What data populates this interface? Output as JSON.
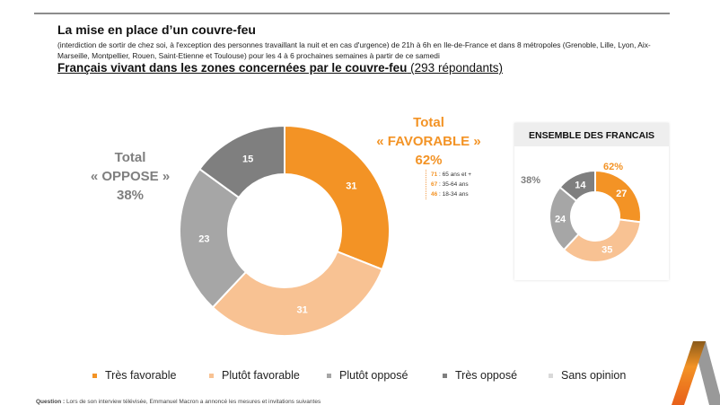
{
  "header": {
    "title": "La mise en place d’un couvre-feu",
    "description": "(interdiction de sortir de chez soi, à l'exception des personnes travaillant la nuit et en cas d'urgence) de 21h à 6h en Ile-de-France et dans 8 métropoles (Grenoble, Lille, Lyon, Aix-Marseille, Montpellier, Rouen, Saint-Etienne et Toulouse) pour les 4 à 6 prochaines semaines à partir de ce samedi",
    "subtitle_bold": "Français vivant dans les zones concernées par le couvre-feu",
    "subtitle_rest": " (293 répondants)"
  },
  "totals": {
    "oppose": {
      "l1": "Total",
      "l2": "« OPPOSE »",
      "l3": "38%"
    },
    "favorable": {
      "l1": "Total",
      "l2": "« FAVORABLE »",
      "l3": "62%"
    }
  },
  "ages": [
    {
      "v": "71",
      "t": " : 65 ans et +"
    },
    {
      "v": "67",
      "t": " : 35-64 ans"
    },
    {
      "v": "46",
      "t": " : 18-34 ans"
    }
  ],
  "colors": {
    "tres_favorable": "#F39325",
    "plutot_favorable": "#F8C293",
    "plutot_oppose": "#A6A6A6",
    "tres_oppose": "#7F7F7F",
    "sans_opinion": "#D9D9D9",
    "accent": "#F39325",
    "gray_text": "#7F7F7F"
  },
  "chart_data": [
    {
      "type": "pie",
      "variant": "donut",
      "title": "Français vivant dans les zones concernées par le couvre-feu",
      "categories": [
        "Très favorable",
        "Plutôt favorable",
        "Plutôt opposé",
        "Très opposé"
      ],
      "values": [
        31,
        31,
        23,
        15
      ]
    },
    {
      "type": "pie",
      "variant": "donut",
      "title": "ENSEMBLE DES FRANCAIS",
      "categories": [
        "Très favorable",
        "Plutôt favorable",
        "Plutôt opposé",
        "Très opposé"
      ],
      "values": [
        27,
        35,
        24,
        14
      ],
      "annotations": {
        "favorable": "62%",
        "oppose": "38%"
      }
    }
  ],
  "legend": [
    "Très favorable",
    "Plutôt favorable",
    "Plutôt opposé",
    "Très opposé",
    "Sans opinion"
  ],
  "footer": {
    "question_label": "Question :",
    "question": " Lors de son interview télévisée, Emmanuel Macron a annoncé les mesures et invitations suivantes"
  }
}
